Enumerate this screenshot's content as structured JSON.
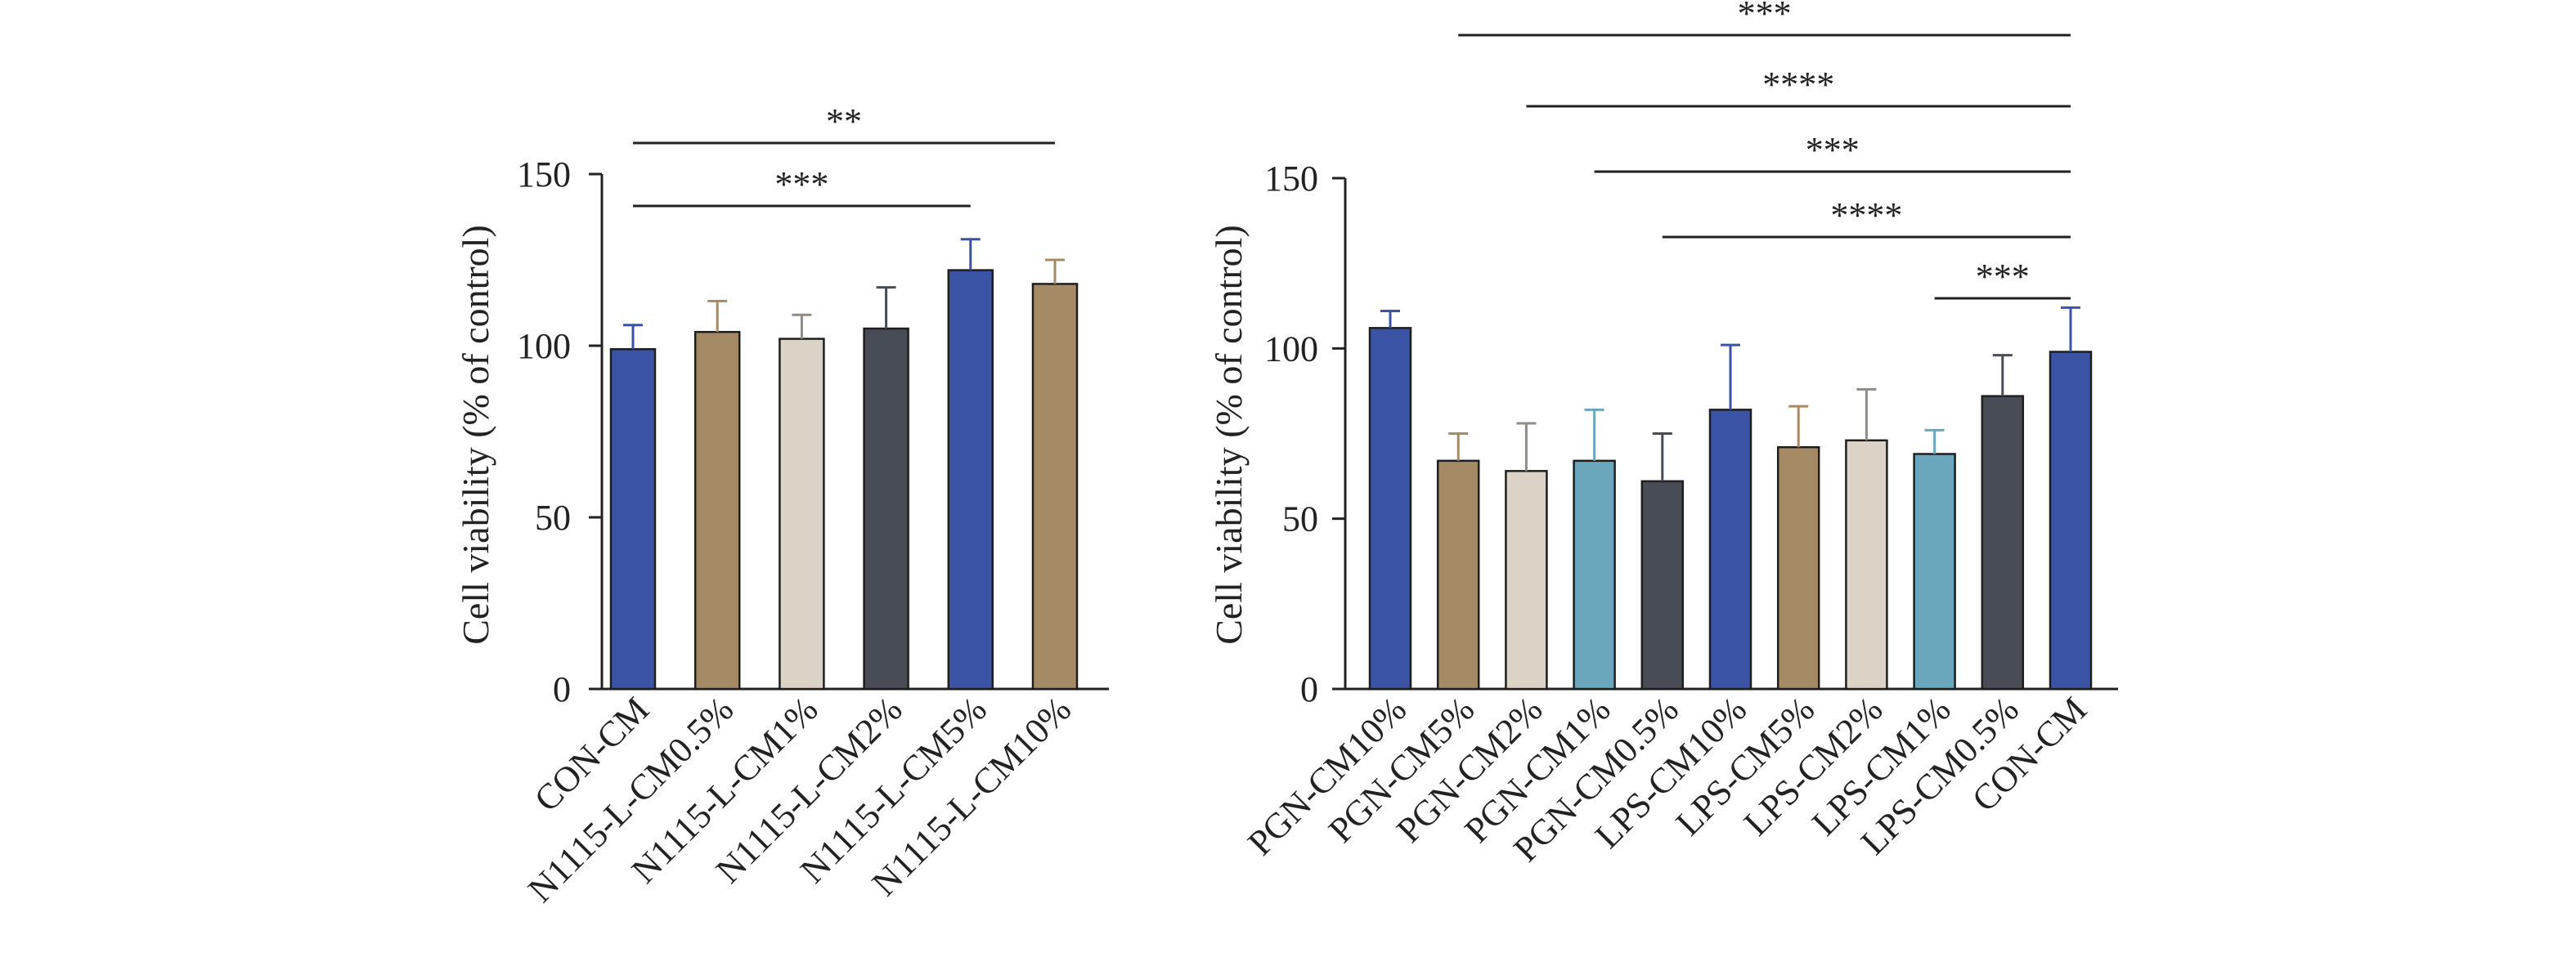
{
  "colors": {
    "axis": "#222222",
    "text": "#222222",
    "bar_stroke": "#1e1e1e"
  },
  "chart_data": [
    {
      "type": "bar",
      "title": "",
      "xlabel": "",
      "ylabel": "Cell viability (% of control)",
      "ylim": [
        0,
        150
      ],
      "yticks": [
        0,
        50,
        100,
        150
      ],
      "categories": [
        "CON-CM",
        "N1115-L-CM0.5%",
        "N1115-L-CM1%",
        "N1115-L-CM2%",
        "N1115-L-CM5%",
        "N1115-L-CM10%"
      ],
      "values": [
        99,
        104,
        102,
        105,
        122,
        118
      ],
      "errors": [
        7,
        9,
        7,
        12,
        9,
        7
      ],
      "bar_colors": [
        "#3a53a4",
        "#a58b65",
        "#dcd3c7",
        "#474c55",
        "#3a53a4",
        "#a58b65"
      ],
      "significance": [
        {
          "from": "CON-CM",
          "to": "N1115-L-CM10%",
          "label": "**"
        },
        {
          "from": "CON-CM",
          "to": "N1115-L-CM5%",
          "label": "***"
        }
      ]
    },
    {
      "type": "bar",
      "title": "",
      "xlabel": "",
      "ylabel": "Cell viability (% of control)",
      "ylim": [
        0,
        150
      ],
      "yticks": [
        0,
        50,
        100,
        150
      ],
      "categories": [
        "PGN-CM10%",
        "PGN-CM5%",
        "PGN-CM2%",
        "PGN-CM1%",
        "PGN-CM0.5%",
        "LPS-CM10%",
        "LPS-CM5%",
        "LPS-CM2%",
        "LPS-CM1%",
        "LPS-CM0.5%",
        "CON-CM"
      ],
      "values": [
        106,
        67,
        64,
        67,
        61,
        82,
        71,
        73,
        69,
        86,
        99
      ],
      "errors": [
        5,
        8,
        14,
        15,
        14,
        19,
        12,
        15,
        7,
        12,
        13
      ],
      "bar_colors": [
        "#3a53a4",
        "#a58b65",
        "#dcd3c7",
        "#6aa7bd",
        "#474c55",
        "#3a53a4",
        "#a58b65",
        "#dcd3c7",
        "#6aa7bd",
        "#474c55",
        "#3a53a4"
      ],
      "significance": [
        {
          "from": "PGN-CM5%",
          "to": "CON-CM",
          "label": "***"
        },
        {
          "from": "PGN-CM2%",
          "to": "CON-CM",
          "label": "****"
        },
        {
          "from": "PGN-CM1%",
          "to": "CON-CM",
          "label": "***"
        },
        {
          "from": "PGN-CM0.5%",
          "to": "CON-CM",
          "label": "****"
        },
        {
          "from": "LPS-CM1%",
          "to": "CON-CM",
          "label": "***"
        }
      ]
    }
  ]
}
